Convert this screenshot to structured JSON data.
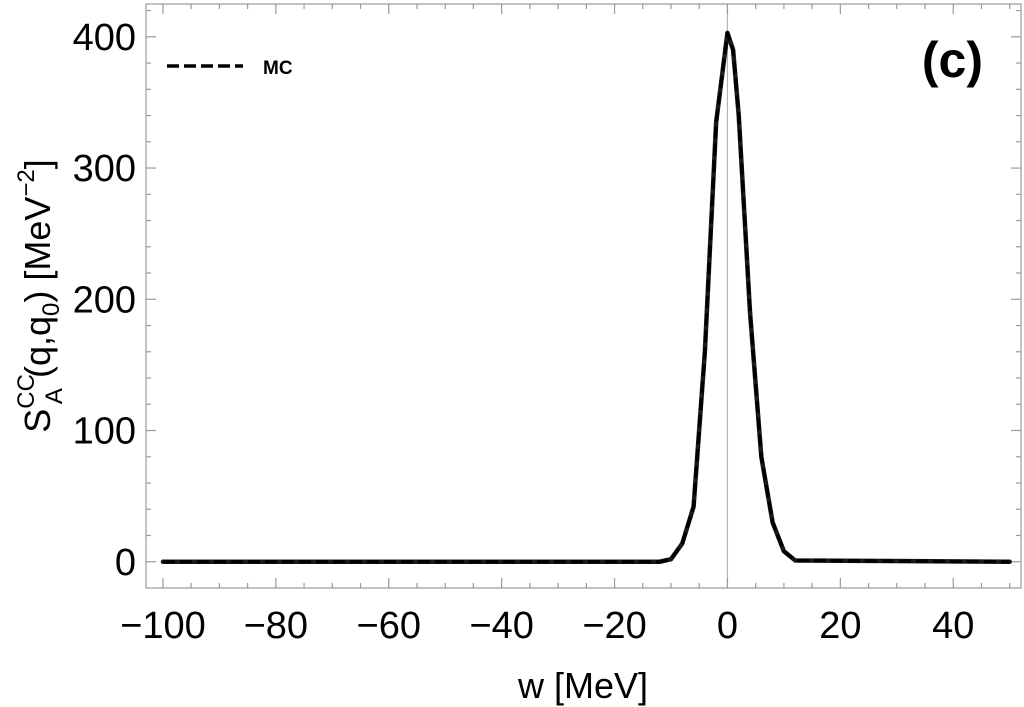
{
  "chart_data": {
    "type": "line",
    "panel_label": "(c)",
    "xlabel": "w [MeV]",
    "ylabel": {
      "base": "S",
      "superscript": "CC",
      "subscript": "A",
      "args_open": " (q,q",
      "args_sub": "0",
      "args_close": ") [MeV",
      "unit_exp": "−2",
      "unit_close": "]"
    },
    "xlim": [
      -103,
      52
    ],
    "ylim": [
      -20,
      425
    ],
    "x_ticks": [
      -100,
      -80,
      -60,
      -40,
      -20,
      0,
      20,
      40
    ],
    "x_tick_labels": [
      "−100",
      "−80",
      "−60",
      "−40",
      "−20",
      "0",
      "20",
      "40"
    ],
    "y_ticks": [
      0,
      100,
      200,
      300,
      400
    ],
    "y_tick_labels": [
      "0",
      "100",
      "200",
      "300",
      "400"
    ],
    "grid": false,
    "zero_line": true,
    "legend_position": "top-left",
    "series": [
      {
        "name": "MC",
        "style": "dashed",
        "color": "#000000",
        "x": [
          -100,
          -40,
          -12,
          -10,
          -8,
          -6,
          -4,
          -2,
          0,
          1,
          2,
          4,
          6,
          8,
          10,
          12,
          50
        ],
        "y": [
          0,
          0,
          0,
          2,
          14,
          42,
          160,
          335,
          403,
          390,
          340,
          190,
          80,
          30,
          8,
          1,
          0
        ]
      }
    ]
  }
}
